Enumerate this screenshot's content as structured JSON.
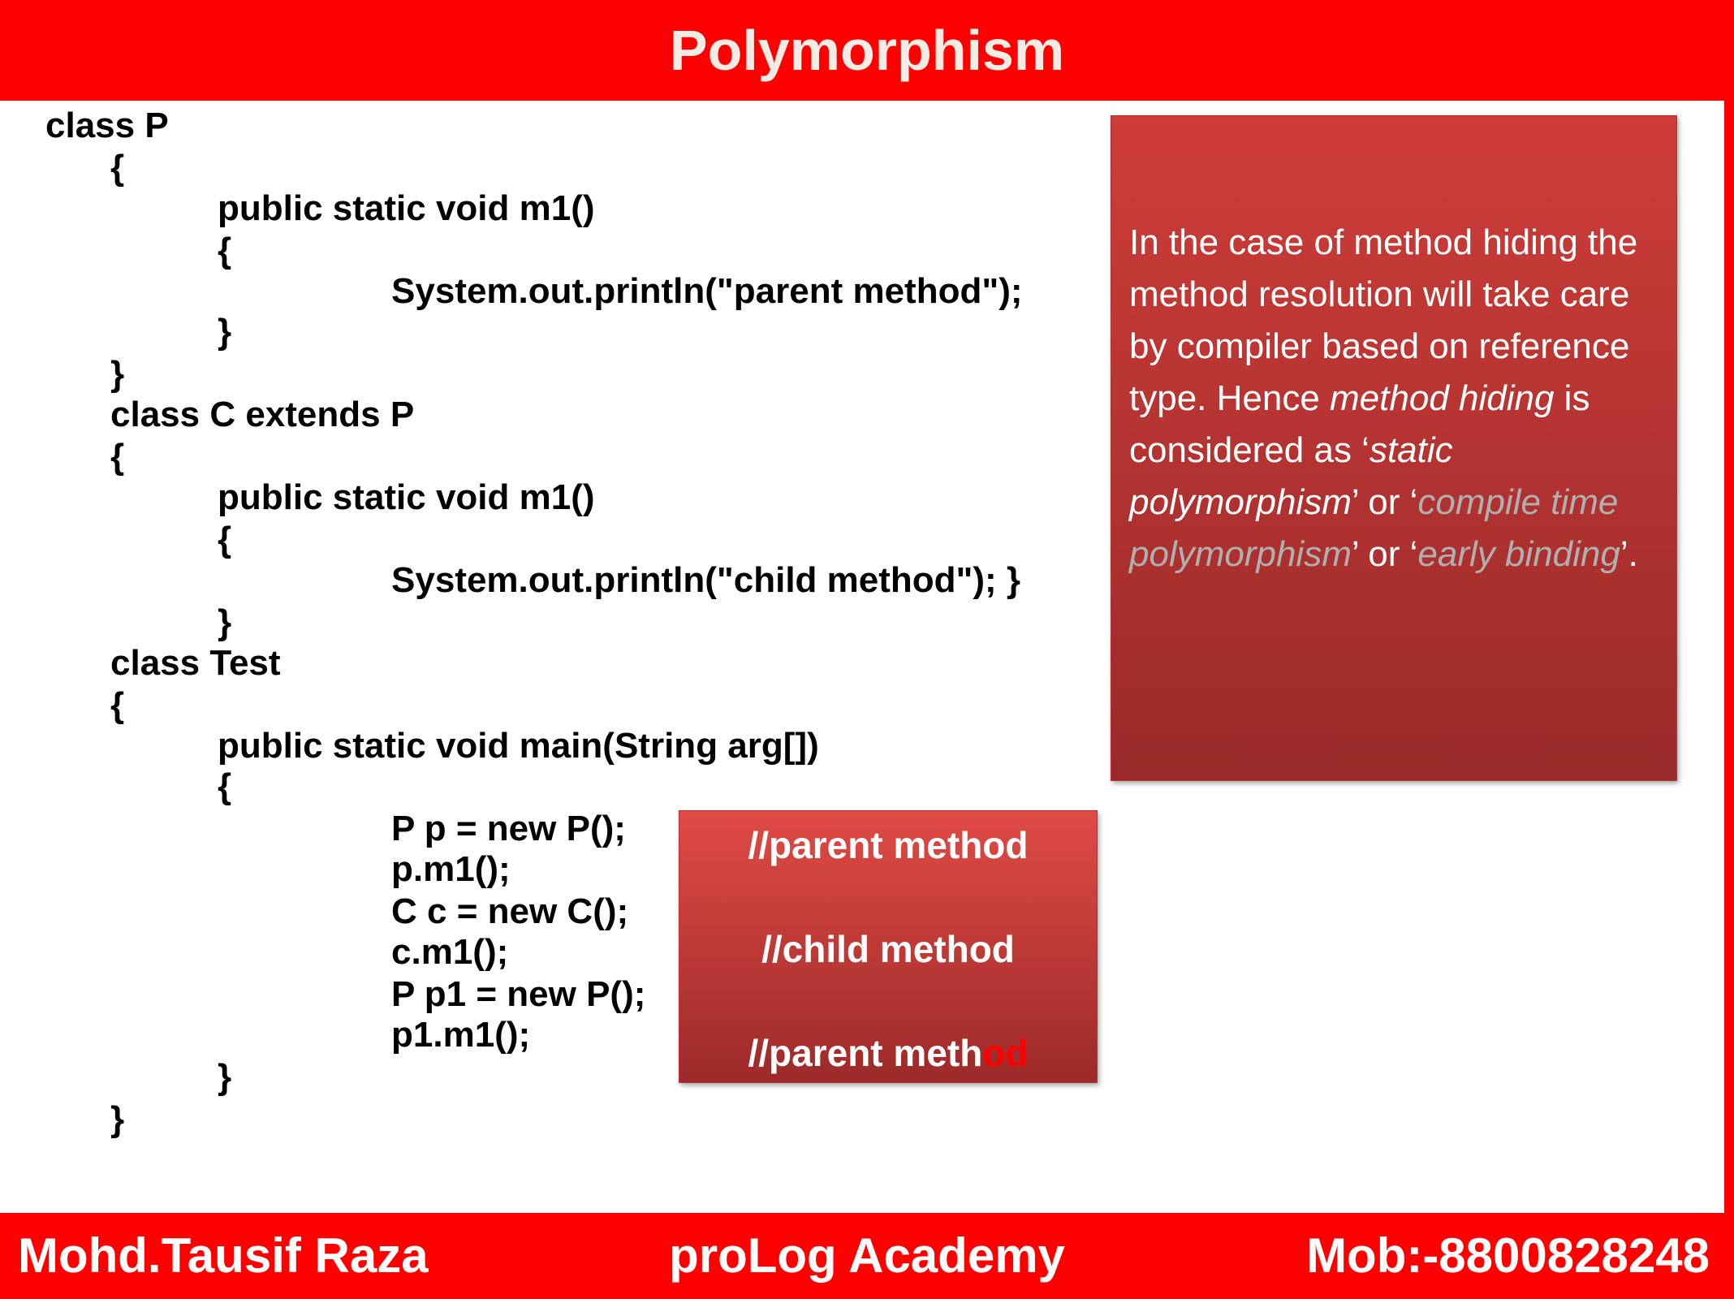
{
  "header": {
    "title": "Polymorphism"
  },
  "code": {
    "lines": [
      "class P",
      "{",
      "public static void m1()",
      "{",
      "System.out.println(\"parent method\");",
      "}",
      "}",
      "class C extends P",
      "{",
      "public static void m1()",
      "{",
      "System.out.println(\"child method\"); }",
      "}",
      "class Test",
      "{",
      "public static void main(String arg[])",
      "{",
      "P p = new P();",
      "p.m1();",
      "C c = new C();",
      "c.m1();",
      "P p1 = new P();",
      "p1.m1();",
      "}",
      "}"
    ]
  },
  "note": {
    "part1": "In the case of method hiding the method resolution will take care by compiler based on reference type. Hence ",
    "part2": "method hiding",
    "part3": " is considered as ‘",
    "part4": "static polymorphism",
    "part5": "’ or ‘",
    "part6": "compile time polymorphism",
    "part7": "’ or ‘",
    "part8": "early binding",
    "part9": "’."
  },
  "output": {
    "line1": "//parent method",
    "line2": "//child method",
    "line3_main": "//parent meth",
    "line3_tail": "od"
  },
  "footer": {
    "author": "Mohd.Tausif Raza",
    "academy": "proLog Academy",
    "mobile": "Mob:-8800828248"
  },
  "colors": {
    "banner": "#ff0000",
    "box_top": "#ce3d38",
    "box_bottom": "#9a2a2a"
  }
}
